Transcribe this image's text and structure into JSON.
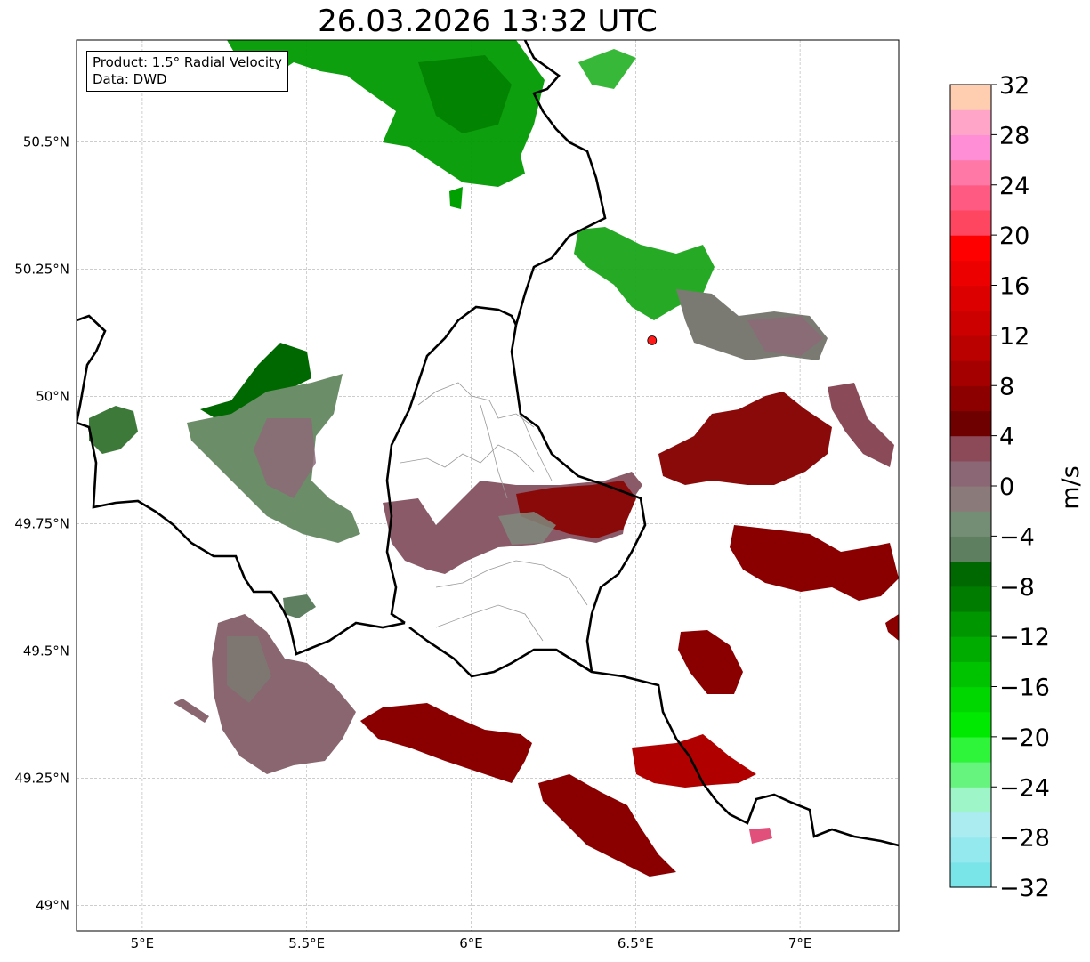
{
  "title": "26.03.2026 13:32 UTC",
  "info": {
    "product": "Product: 1.5° Radial Velocity",
    "data": "Data: DWD"
  },
  "map": {
    "lon_range": [
      4.8,
      7.3
    ],
    "lat_range": [
      48.95,
      50.7
    ],
    "lon_ticks": [
      {
        "value": 5.0,
        "label": "5°E"
      },
      {
        "value": 5.5,
        "label": "5.5°E"
      },
      {
        "value": 6.0,
        "label": "6°E"
      },
      {
        "value": 6.5,
        "label": "6.5°E"
      },
      {
        "value": 7.0,
        "label": "7°E"
      }
    ],
    "lat_ticks": [
      {
        "value": 49.0,
        "label": "49°N"
      },
      {
        "value": 49.25,
        "label": "49.25°N"
      },
      {
        "value": 49.5,
        "label": "49.5°N"
      },
      {
        "value": 49.75,
        "label": "49.75°N"
      },
      {
        "value": 50.0,
        "label": "50°N"
      },
      {
        "value": 50.25,
        "label": "50.25°N"
      },
      {
        "value": 50.5,
        "label": "50.5°N"
      }
    ],
    "grid": true,
    "radar_site": {
      "lon": 6.55,
      "lat": 50.11,
      "color": "#ff1a1a"
    }
  },
  "colorbar": {
    "unit": "m/s",
    "min": -32,
    "max": 32,
    "tick_values": [
      32,
      28,
      24,
      20,
      16,
      12,
      8,
      4,
      0,
      -4,
      -8,
      -12,
      -16,
      -20,
      -24,
      -28,
      -32
    ],
    "tick_labels": [
      "32",
      "28",
      "24",
      "20",
      "16",
      "12",
      "8",
      "4",
      "0",
      "−4",
      "−8",
      "−12",
      "−16",
      "−20",
      "−24",
      "−28",
      "−32"
    ],
    "colors": [
      "#7ae5e8",
      "#93e9ee",
      "#abecf0",
      "#9ef5c8",
      "#66f47e",
      "#2ef53a",
      "#00e900",
      "#00d600",
      "#00c300",
      "#00ac00",
      "#009600",
      "#007d00",
      "#006800",
      "#5e8060",
      "#748d75",
      "#8b7a7a",
      "#8b6675",
      "#8c4a58",
      "#6e0000",
      "#8c0000",
      "#a50000",
      "#bb0000",
      "#cd0000",
      "#dc0000",
      "#ec0000",
      "#ff0000",
      "#ff4661",
      "#ff5a82",
      "#ff78a6",
      "#ff8ed6",
      "#ffa6c8",
      "#ffcdb0"
    ]
  },
  "echoes": [
    {
      "area": "north-green",
      "color": "#009a00"
    },
    {
      "area": "northeast-green",
      "color": "#1aa51a"
    },
    {
      "area": "west-green-gray",
      "color": "#6b8e68"
    },
    {
      "area": "central-mixed",
      "color": "#8a5a68"
    },
    {
      "area": "south-maroon",
      "color": "#8a0000"
    },
    {
      "area": "east-maroon",
      "color": "#8a0a0a"
    }
  ]
}
